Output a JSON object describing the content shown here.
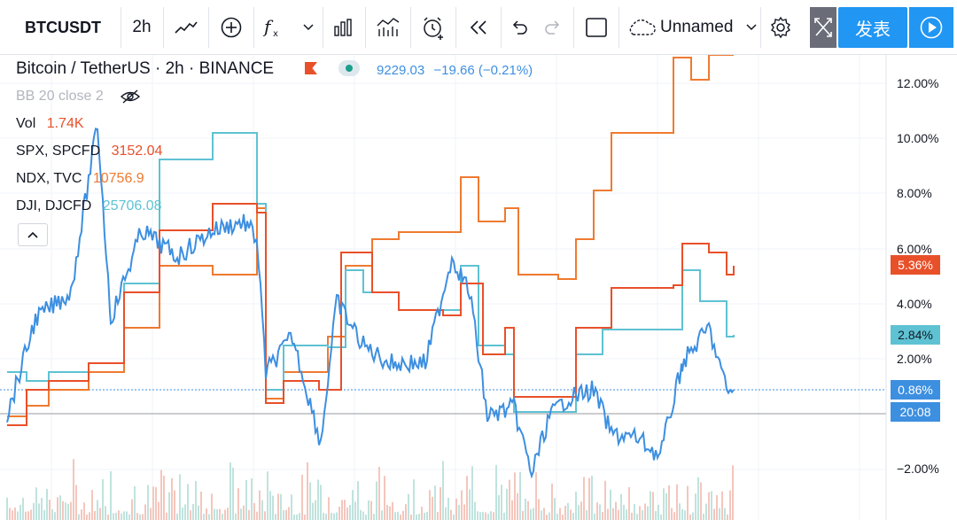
{
  "toolbar": {
    "symbol": "BTCUSDT",
    "interval": "2h",
    "layout_name": "Unnamed",
    "publish_label": "发表"
  },
  "legend": {
    "main_title": "Bitcoin / TetherUS · 2h · BINANCE",
    "main_value": "9229.03",
    "main_change": "−19.66 (−0.21%)",
    "bb_label": "BB 20 close 2",
    "vol_label": "Vol",
    "vol_value": "1.74K",
    "spx_label": "SPX, SPCFD",
    "spx_value": "3152.04",
    "ndx_label": "NDX, TVC",
    "ndx_value": "10756.9",
    "dji_label": "DJI, DJCFD",
    "dji_value": "25706.08"
  },
  "y_axis": {
    "ticks": [
      "12.00%",
      "10.00%",
      "8.00%",
      "6.00%",
      "4.00%",
      "2.00%",
      "−2.00%"
    ]
  },
  "price_tags": {
    "spx": "5.36%",
    "dji": "2.84%",
    "btc": "0.86%",
    "time": "20:08"
  },
  "colors": {
    "btc": "#3d8fe0",
    "spx": "#e8502a",
    "ndx": "#ef7a30",
    "dji": "#5ec2d3",
    "accent": "#2196f3"
  }
}
